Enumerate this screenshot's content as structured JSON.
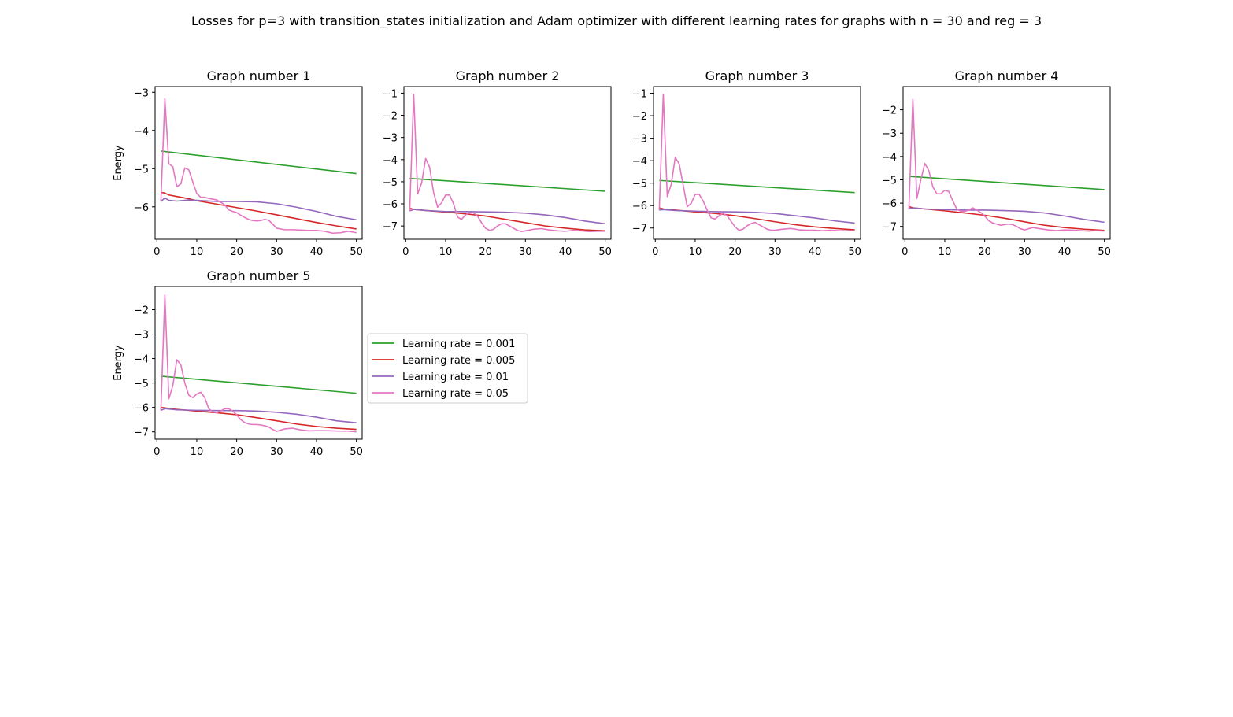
{
  "figure": {
    "suptitle": "Losses for p=3 with transition_states initialization and Adam optimizer with different learning rates for graphs with n = 30 and reg = 3"
  },
  "legend": {
    "placement": "right of bottom-left subplot",
    "entries": [
      {
        "label": "Learning rate = 0.001",
        "color": "#2ca02c"
      },
      {
        "label": "Learning rate = 0.005",
        "color": "#d62728"
      },
      {
        "label": "Learning rate = 0.01",
        "color": "#9467bd"
      },
      {
        "label": "Learning rate = 0.05",
        "color": "#e377c2"
      }
    ]
  },
  "chart_data": [
    {
      "type": "line",
      "title": "Graph number 1",
      "xlabel": "",
      "ylabel": "Energy",
      "xlim": [
        -0.45,
        51.45
      ],
      "ylim": [
        -6.85,
        -2.85
      ],
      "xticks": [
        0,
        10,
        20,
        30,
        40,
        50
      ],
      "yticks": [
        -6,
        -5,
        -4,
        -3
      ],
      "series": [
        {
          "name": "Learning rate = 0.001",
          "color": "#2ca02c",
          "x": [
            1,
            50
          ],
          "y": [
            -4.54,
            -5.13
          ]
        },
        {
          "name": "Learning rate = 0.005",
          "color": "#d62728",
          "x": [
            1,
            2,
            3,
            5,
            8,
            10,
            15,
            20,
            25,
            30,
            35,
            40,
            45,
            50
          ],
          "y": [
            -5.62,
            -5.64,
            -5.69,
            -5.73,
            -5.79,
            -5.84,
            -5.93,
            -6.02,
            -6.11,
            -6.21,
            -6.31,
            -6.41,
            -6.5,
            -6.58
          ]
        },
        {
          "name": "Learning rate = 0.01",
          "color": "#9467bd",
          "x": [
            1,
            2,
            3,
            5,
            8,
            10,
            15,
            20,
            25,
            30,
            35,
            40,
            45,
            50
          ],
          "y": [
            -5.86,
            -5.77,
            -5.83,
            -5.85,
            -5.82,
            -5.83,
            -5.86,
            -5.86,
            -5.87,
            -5.92,
            -6.01,
            -6.12,
            -6.25,
            -6.34
          ]
        },
        {
          "name": "Learning rate = 0.05",
          "color": "#e377c2",
          "x": [
            1,
            2,
            3,
            4,
            5,
            6,
            7,
            8,
            9,
            10,
            11,
            12,
            13,
            14,
            15,
            16,
            17,
            18,
            19,
            20,
            21,
            22,
            23,
            24,
            25,
            26,
            27,
            28,
            29,
            30,
            32,
            34,
            36,
            38,
            40,
            42,
            44,
            46,
            48,
            50
          ],
          "y": [
            -5.85,
            -3.17,
            -4.87,
            -4.95,
            -5.47,
            -5.4,
            -4.98,
            -5.03,
            -5.35,
            -5.65,
            -5.75,
            -5.75,
            -5.78,
            -5.8,
            -5.82,
            -5.88,
            -5.95,
            -6.08,
            -6.12,
            -6.15,
            -6.22,
            -6.28,
            -6.33,
            -6.36,
            -6.37,
            -6.36,
            -6.33,
            -6.35,
            -6.45,
            -6.56,
            -6.6,
            -6.6,
            -6.61,
            -6.62,
            -6.62,
            -6.64,
            -6.69,
            -6.68,
            -6.64,
            -6.68
          ]
        }
      ]
    },
    {
      "type": "line",
      "title": "Graph number 2",
      "xlabel": "",
      "ylabel": "",
      "xlim": [
        -0.45,
        51.45
      ],
      "ylim": [
        -7.6,
        -0.7
      ],
      "xticks": [
        0,
        10,
        20,
        30,
        40,
        50
      ],
      "yticks": [
        -7,
        -6,
        -5,
        -4,
        -3,
        -2,
        -1
      ],
      "series": [
        {
          "name": "Learning rate = 0.001",
          "color": "#2ca02c",
          "x": [
            1,
            50
          ],
          "y": [
            -4.85,
            -5.43
          ]
        },
        {
          "name": "Learning rate = 0.005",
          "color": "#d62728",
          "x": [
            1,
            2,
            5,
            10,
            15,
            20,
            25,
            30,
            35,
            40,
            45,
            50
          ],
          "y": [
            -6.2,
            -6.25,
            -6.3,
            -6.37,
            -6.45,
            -6.55,
            -6.7,
            -6.85,
            -7.0,
            -7.1,
            -7.18,
            -7.22
          ]
        },
        {
          "name": "Learning rate = 0.01",
          "color": "#9467bd",
          "x": [
            1,
            2,
            5,
            10,
            15,
            20,
            25,
            30,
            35,
            40,
            45,
            50
          ],
          "y": [
            -6.32,
            -6.25,
            -6.3,
            -6.35,
            -6.35,
            -6.36,
            -6.38,
            -6.42,
            -6.5,
            -6.62,
            -6.78,
            -6.9
          ]
        },
        {
          "name": "Learning rate = 0.05",
          "color": "#e377c2",
          "x": [
            1,
            2,
            3,
            4,
            5,
            6,
            7,
            8,
            9,
            10,
            11,
            12,
            13,
            14,
            15,
            16,
            17,
            18,
            19,
            20,
            21,
            22,
            23,
            24,
            25,
            26,
            27,
            28,
            29,
            30,
            32,
            34,
            36,
            38,
            40,
            42,
            44,
            46,
            48,
            50
          ],
          "y": [
            -6.32,
            -1.05,
            -5.55,
            -5.05,
            -3.95,
            -4.35,
            -5.5,
            -6.15,
            -5.95,
            -5.6,
            -5.6,
            -6.0,
            -6.6,
            -6.7,
            -6.5,
            -6.4,
            -6.4,
            -6.55,
            -6.85,
            -7.1,
            -7.2,
            -7.15,
            -7.0,
            -6.9,
            -6.9,
            -7.0,
            -7.1,
            -7.2,
            -7.25,
            -7.22,
            -7.15,
            -7.12,
            -7.18,
            -7.22,
            -7.24,
            -7.2,
            -7.22,
            -7.25,
            -7.24,
            -7.24
          ]
        }
      ]
    },
    {
      "type": "line",
      "title": "Graph number 3",
      "xlabel": "",
      "ylabel": "",
      "xlim": [
        -0.45,
        51.45
      ],
      "ylim": [
        -7.5,
        -0.7
      ],
      "xticks": [
        0,
        10,
        20,
        30,
        40,
        50
      ],
      "yticks": [
        -7,
        -6,
        -5,
        -4,
        -3,
        -2,
        -1
      ],
      "series": [
        {
          "name": "Learning rate = 0.001",
          "color": "#2ca02c",
          "x": [
            1,
            50
          ],
          "y": [
            -4.88,
            -5.42
          ]
        },
        {
          "name": "Learning rate = 0.005",
          "color": "#d62728",
          "x": [
            1,
            2,
            5,
            10,
            15,
            20,
            25,
            30,
            35,
            40,
            45,
            50
          ],
          "y": [
            -6.1,
            -6.15,
            -6.2,
            -6.28,
            -6.35,
            -6.45,
            -6.58,
            -6.72,
            -6.85,
            -6.95,
            -7.02,
            -7.08
          ]
        },
        {
          "name": "Learning rate = 0.01",
          "color": "#9467bd",
          "x": [
            1,
            2,
            5,
            10,
            15,
            20,
            25,
            30,
            35,
            40,
            45,
            50
          ],
          "y": [
            -6.2,
            -6.18,
            -6.22,
            -6.25,
            -6.27,
            -6.28,
            -6.3,
            -6.35,
            -6.45,
            -6.55,
            -6.68,
            -6.78
          ]
        },
        {
          "name": "Learning rate = 0.05",
          "color": "#e377c2",
          "x": [
            1,
            2,
            3,
            4,
            5,
            6,
            7,
            8,
            9,
            10,
            11,
            12,
            13,
            14,
            15,
            16,
            17,
            18,
            19,
            20,
            21,
            22,
            23,
            24,
            25,
            26,
            27,
            28,
            29,
            30,
            32,
            34,
            36,
            38,
            40,
            42,
            44,
            46,
            48,
            50
          ],
          "y": [
            -6.2,
            -1.05,
            -5.6,
            -5.05,
            -3.85,
            -4.15,
            -5.1,
            -6.05,
            -5.9,
            -5.5,
            -5.5,
            -5.8,
            -6.2,
            -6.55,
            -6.6,
            -6.45,
            -6.35,
            -6.45,
            -6.7,
            -6.95,
            -7.1,
            -7.05,
            -6.9,
            -6.8,
            -6.75,
            -6.85,
            -6.95,
            -7.05,
            -7.1,
            -7.1,
            -7.05,
            -7.02,
            -7.08,
            -7.1,
            -7.1,
            -7.12,
            -7.1,
            -7.12,
            -7.12,
            -7.12
          ]
        }
      ]
    },
    {
      "type": "line",
      "title": "Graph number 4",
      "xlabel": "",
      "ylabel": "",
      "xlim": [
        -0.45,
        51.45
      ],
      "ylim": [
        -7.55,
        -1.0
      ],
      "xticks": [
        0,
        10,
        20,
        30,
        40,
        50
      ],
      "yticks": [
        -7,
        -6,
        -5,
        -4,
        -3,
        -2
      ],
      "series": [
        {
          "name": "Learning rate = 0.001",
          "color": "#2ca02c",
          "x": [
            1,
            50
          ],
          "y": [
            -4.85,
            -5.42
          ]
        },
        {
          "name": "Learning rate = 0.005",
          "color": "#d62728",
          "x": [
            1,
            2,
            5,
            10,
            15,
            20,
            25,
            30,
            35,
            40,
            45,
            50
          ],
          "y": [
            -6.15,
            -6.2,
            -6.25,
            -6.33,
            -6.42,
            -6.52,
            -6.65,
            -6.8,
            -6.95,
            -7.05,
            -7.12,
            -7.17
          ]
        },
        {
          "name": "Learning rate = 0.01",
          "color": "#9467bd",
          "x": [
            1,
            2,
            5,
            10,
            15,
            20,
            25,
            30,
            35,
            40,
            45,
            50
          ],
          "y": [
            -6.25,
            -6.2,
            -6.25,
            -6.28,
            -6.3,
            -6.3,
            -6.32,
            -6.35,
            -6.42,
            -6.55,
            -6.7,
            -6.82
          ]
        },
        {
          "name": "Learning rate = 0.05",
          "color": "#e377c2",
          "x": [
            1,
            2,
            3,
            4,
            5,
            6,
            7,
            8,
            9,
            10,
            11,
            12,
            13,
            14,
            15,
            16,
            17,
            18,
            19,
            20,
            21,
            22,
            23,
            24,
            25,
            26,
            27,
            28,
            29,
            30,
            32,
            34,
            36,
            38,
            40,
            42,
            44,
            46,
            48,
            50
          ],
          "y": [
            -6.25,
            -1.55,
            -5.8,
            -5.0,
            -4.3,
            -4.6,
            -5.3,
            -5.6,
            -5.6,
            -5.45,
            -5.5,
            -5.9,
            -6.25,
            -6.35,
            -6.35,
            -6.3,
            -6.2,
            -6.3,
            -6.4,
            -6.55,
            -6.75,
            -6.85,
            -6.9,
            -6.95,
            -6.92,
            -6.9,
            -6.92,
            -7.0,
            -7.1,
            -7.15,
            -7.05,
            -7.1,
            -7.15,
            -7.18,
            -7.15,
            -7.16,
            -7.18,
            -7.2,
            -7.18,
            -7.2
          ]
        }
      ]
    },
    {
      "type": "line",
      "title": "Graph number 5",
      "xlabel": "",
      "ylabel": "Energy",
      "xlim": [
        -0.45,
        51.45
      ],
      "ylim": [
        -7.3,
        -1.05
      ],
      "xticks": [
        0,
        10,
        20,
        30,
        40,
        50
      ],
      "yticks": [
        -7,
        -6,
        -5,
        -4,
        -3,
        -2
      ],
      "series": [
        {
          "name": "Learning rate = 0.001",
          "color": "#2ca02c",
          "x": [
            1,
            50
          ],
          "y": [
            -4.72,
            -5.42
          ]
        },
        {
          "name": "Learning rate = 0.005",
          "color": "#d62728",
          "x": [
            1,
            2,
            5,
            10,
            15,
            20,
            25,
            30,
            35,
            40,
            45,
            50
          ],
          "y": [
            -6.0,
            -6.02,
            -6.08,
            -6.15,
            -6.22,
            -6.3,
            -6.42,
            -6.55,
            -6.68,
            -6.78,
            -6.85,
            -6.9
          ]
        },
        {
          "name": "Learning rate = 0.01",
          "color": "#9467bd",
          "x": [
            1,
            2,
            5,
            10,
            15,
            20,
            25,
            30,
            35,
            40,
            45,
            50
          ],
          "y": [
            -6.12,
            -6.05,
            -6.1,
            -6.12,
            -6.13,
            -6.13,
            -6.15,
            -6.2,
            -6.28,
            -6.4,
            -6.55,
            -6.63
          ]
        },
        {
          "name": "Learning rate = 0.05",
          "color": "#e377c2",
          "x": [
            1,
            2,
            3,
            4,
            5,
            6,
            7,
            8,
            9,
            10,
            11,
            12,
            13,
            14,
            15,
            16,
            17,
            18,
            19,
            20,
            21,
            22,
            23,
            24,
            25,
            26,
            27,
            28,
            29,
            30,
            32,
            34,
            36,
            38,
            40,
            42,
            44,
            46,
            48,
            50
          ],
          "y": [
            -6.12,
            -1.4,
            -5.65,
            -5.1,
            -4.05,
            -4.25,
            -5.0,
            -5.5,
            -5.6,
            -5.45,
            -5.38,
            -5.6,
            -6.05,
            -6.18,
            -6.22,
            -6.15,
            -6.05,
            -6.05,
            -6.15,
            -6.3,
            -6.5,
            -6.62,
            -6.68,
            -6.7,
            -6.7,
            -6.72,
            -6.75,
            -6.8,
            -6.9,
            -6.98,
            -6.88,
            -6.85,
            -6.92,
            -6.96,
            -6.95,
            -6.95,
            -6.96,
            -6.97,
            -6.97,
            -7.0
          ]
        }
      ]
    }
  ]
}
